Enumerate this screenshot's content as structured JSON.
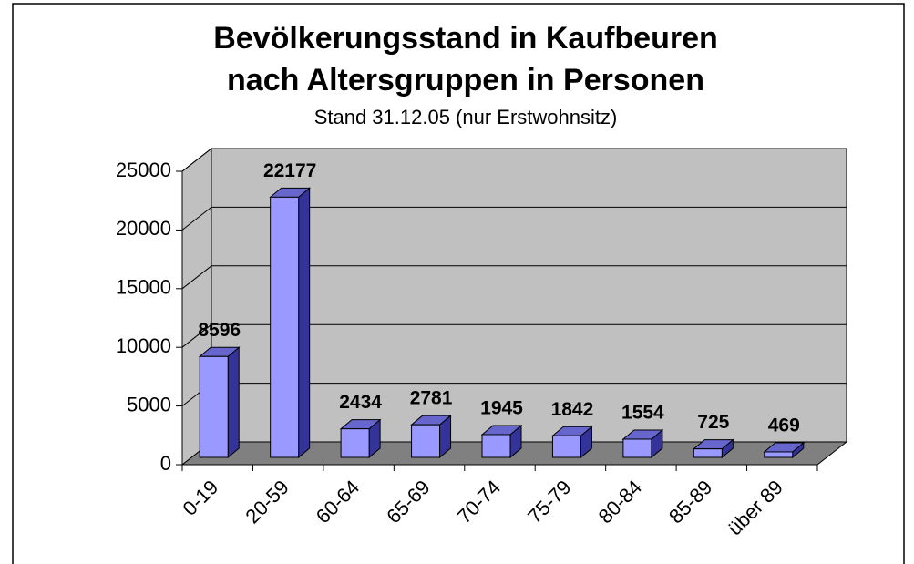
{
  "chart_data": {
    "type": "bar3d",
    "title": [
      "Bevölkerungsstand in Kaufbeuren",
      "nach Altersgruppen in Personen"
    ],
    "subtitle": "Stand 31.12.05 (nur Erstwohnsitz)",
    "categories": [
      "0-19",
      "20-59",
      "60-64",
      "65-69",
      "70-74",
      "75-79",
      "80-84",
      "85-89",
      "über 89"
    ],
    "values": [
      8596,
      22177,
      2434,
      2781,
      1945,
      1842,
      1554,
      725,
      469
    ],
    "color": "#9999ff",
    "ylim": [
      0,
      25000
    ],
    "yticks": [
      0,
      5000,
      10000,
      15000,
      20000,
      25000
    ],
    "grid": true
  }
}
